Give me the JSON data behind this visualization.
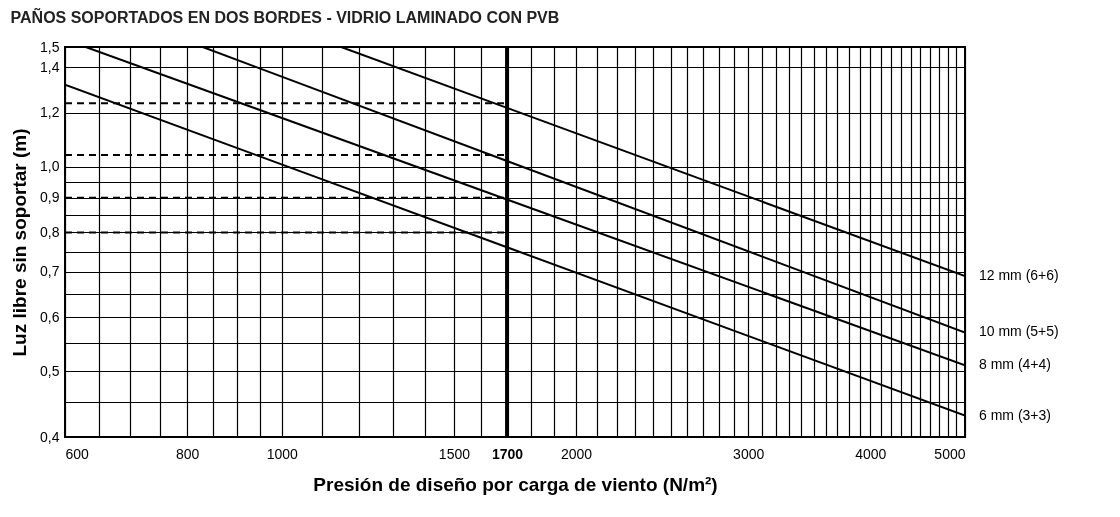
{
  "chart_data": {
    "type": "line",
    "title": "PAÑOS SOPORTADOS EN DOS BORDES - VIDRIO LAMINADO CON PVB",
    "xlabel": "Presión de diseño por carga de viento (N/m²)",
    "ylabel": "Luz libre sin soportar (m)",
    "log": "xy",
    "grid": true,
    "legend": false,
    "marker": "none",
    "line_style": "solid",
    "xlim": [
      600,
      5000
    ],
    "ylim": [
      0.4,
      1.5
    ],
    "xticks": [
      600,
      {
        "value": 650,
        "label": null
      },
      {
        "value": 700,
        "label": null
      },
      {
        "value": 750,
        "label": null
      },
      800,
      {
        "value": 850,
        "label": null
      },
      {
        "value": 900,
        "label": null
      },
      {
        "value": 950,
        "label": null
      },
      1000,
      {
        "value": 1100,
        "label": null
      },
      {
        "value": 1200,
        "label": null
      },
      {
        "value": 1300,
        "label": null
      },
      {
        "value": 1400,
        "label": null
      },
      1500,
      {
        "value": 1600,
        "label": null
      },
      1700,
      {
        "value": 1800,
        "label": null
      },
      {
        "value": 1900,
        "label": null
      },
      2000,
      {
        "value": 2100,
        "label": null
      },
      {
        "value": 2200,
        "label": null
      },
      {
        "value": 2300,
        "label": null
      },
      {
        "value": 2400,
        "label": null
      },
      {
        "value": 2500,
        "label": null
      },
      {
        "value": 2600,
        "label": null
      },
      {
        "value": 2700,
        "label": null
      },
      {
        "value": 2800,
        "label": null
      },
      {
        "value": 2900,
        "label": null
      },
      3000,
      {
        "value": 3100,
        "label": null
      },
      {
        "value": 3200,
        "label": null
      },
      {
        "value": 3300,
        "label": null
      },
      {
        "value": 3400,
        "label": null
      },
      {
        "value": 3500,
        "label": null
      },
      {
        "value": 3600,
        "label": null
      },
      {
        "value": 3700,
        "label": null
      },
      {
        "value": 3800,
        "label": null
      },
      {
        "value": 3900,
        "label": null
      },
      4000,
      {
        "value": 4100,
        "label": null
      },
      {
        "value": 4200,
        "label": null
      },
      {
        "value": 4300,
        "label": null
      },
      {
        "value": 4400,
        "label": null
      },
      {
        "value": 4500,
        "label": null
      },
      {
        "value": 4600,
        "label": null
      },
      {
        "value": 4700,
        "label": null
      },
      {
        "value": 4800,
        "label": null
      },
      {
        "value": 4900,
        "label": null
      },
      5000
    ],
    "yticks": [
      {
        "value": 0.4,
        "label": "0,4"
      },
      {
        "value": 0.45,
        "label": null
      },
      {
        "value": 0.5,
        "label": "0,5"
      },
      {
        "value": 0.55,
        "label": null
      },
      {
        "value": 0.6,
        "label": "0,6"
      },
      {
        "value": 0.65,
        "label": null
      },
      {
        "value": 0.7,
        "label": "0,7"
      },
      {
        "value": 0.75,
        "label": null
      },
      {
        "value": 0.8,
        "label": "0,8"
      },
      {
        "value": 0.85,
        "label": null
      },
      {
        "value": 0.9,
        "label": "0,9"
      },
      {
        "value": 0.95,
        "label": null
      },
      {
        "value": 1.0,
        "label": "1,0"
      },
      {
        "value": 1.2,
        "label": "1,2"
      },
      {
        "value": 1.4,
        "label": "1,4"
      },
      {
        "value": 1.5,
        "label": "1,5"
      }
    ],
    "ref_lines": [
      {
        "axis": "x",
        "value": 1700,
        "color": "#000000"
      }
    ],
    "series": [
      {
        "name": "12 mm (6+6)",
        "color": "#000000",
        "x": [
          1150,
          5000
        ],
        "values": [
          1.5,
          0.69
        ]
      },
      {
        "name": "10 mm (5+5)",
        "color": "#000000",
        "x": [
          830,
          5000
        ],
        "values": [
          1.5,
          0.57
        ]
      },
      {
        "name": "8 mm (4+4)",
        "color": "#000000",
        "x": [
          630,
          5000
        ],
        "values": [
          1.5,
          0.51
        ]
      },
      {
        "name": "6 mm (3+3)",
        "color": "#000000",
        "x": [
          600,
          5000
        ],
        "values": [
          1.32,
          0.43
        ]
      },
      {
        "color": "#000000",
        "line_style": "dashed",
        "x": [
          600,
          1700
        ],
        "values": [
          1.24,
          1.24
        ]
      },
      {
        "color": "#000000",
        "line_style": "dashed",
        "x": [
          600,
          1700
        ],
        "values": [
          1.04,
          1.04
        ]
      },
      {
        "color": "#000000",
        "line_style": "dashed",
        "x": [
          600,
          1700
        ],
        "values": [
          0.9,
          0.9
        ]
      },
      {
        "color": "#000000",
        "line_style": "dashed",
        "x": [
          600,
          1700
        ],
        "values": [
          0.8,
          0.8
        ]
      }
    ]
  }
}
